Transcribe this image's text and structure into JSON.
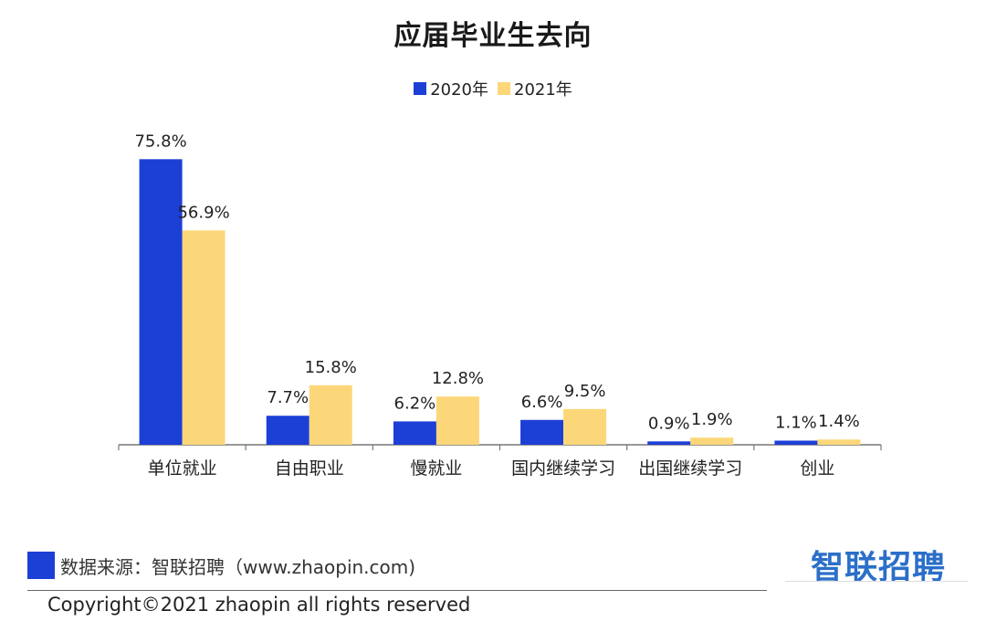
{
  "chart_data": {
    "type": "bar",
    "title": "应届毕业生去向",
    "categories": [
      "单位就业",
      "自由职业",
      "慢就业",
      "国内继续学习",
      "出国继续学习",
      "创业"
    ],
    "series": [
      {
        "name": "2020年",
        "color": "#1c3fd6",
        "values": [
          75.8,
          7.7,
          6.2,
          6.6,
          0.9,
          1.1
        ],
        "labels": [
          "75.8%",
          "7.7%",
          "6.2%",
          "6.6%",
          "0.9%",
          "1.1%"
        ]
      },
      {
        "name": "2021年",
        "color": "#fcd77a",
        "values": [
          56.9,
          15.8,
          12.8,
          9.5,
          1.9,
          1.4
        ],
        "labels": [
          "56.9%",
          "15.8%",
          "12.8%",
          "9.5%",
          "1.9%",
          "1.4%"
        ]
      }
    ],
    "ylim": [
      0,
      80
    ],
    "grid": false,
    "legend_position": "top-center"
  },
  "footer": {
    "source": "数据来源：智联招聘（www.zhaopin.com)",
    "copyright": "Copyright©2021 zhaopin all rights reserved",
    "logo": "智联招聘"
  }
}
